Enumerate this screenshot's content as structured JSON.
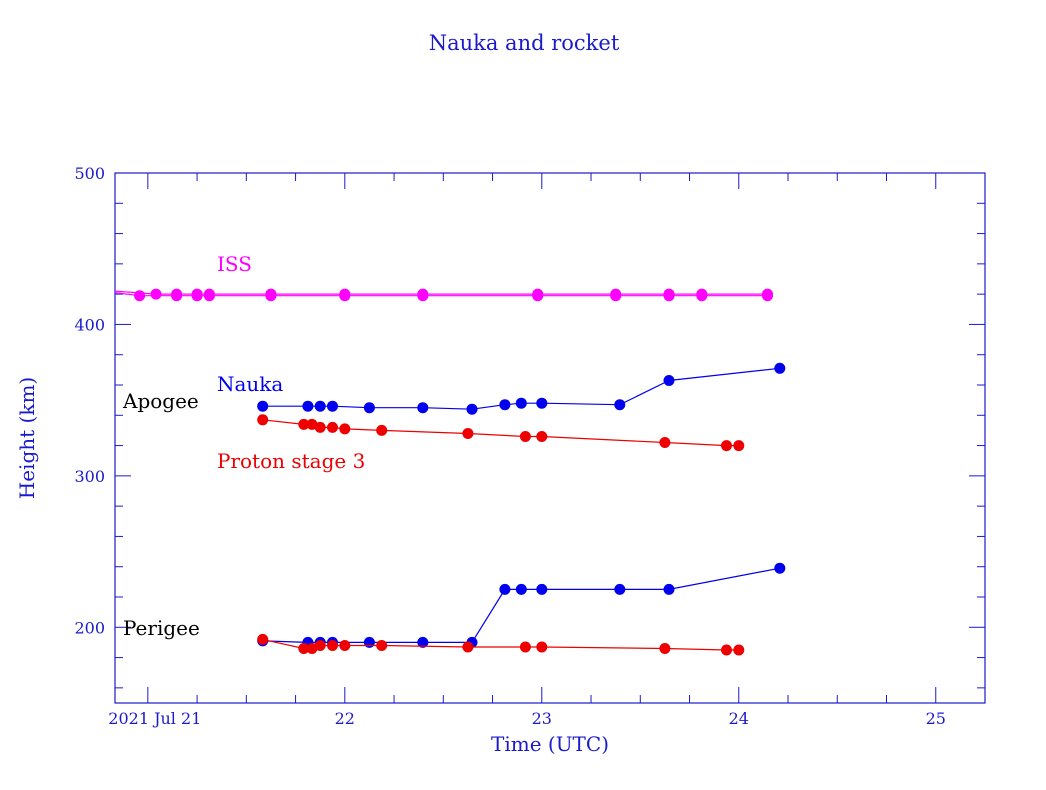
{
  "chart_data": {
    "type": "line",
    "title": "Nauka and rocket",
    "xlabel": "Time (UTC)",
    "ylabel": "Height (km)",
    "xlim": [
      "2021-07-20T20:00",
      "2021-07-25T06:00"
    ],
    "ylim": [
      150,
      500
    ],
    "x_ticks": [
      {
        "value": "2021-07-21",
        "label": "2021 Jul 21"
      },
      {
        "value": "2021-07-22",
        "label": "22"
      },
      {
        "value": "2021-07-23",
        "label": "23"
      },
      {
        "value": "2021-07-24",
        "label": "24"
      },
      {
        "value": "2021-07-25",
        "label": "25"
      }
    ],
    "y_ticks": [
      200,
      300,
      400,
      500
    ],
    "annotations": {
      "apogee": "Apogee",
      "perigee": "Perigee"
    },
    "series": [
      {
        "name": "ISS",
        "color": "#ff00ff",
        "lines": [
          {
            "points": [
              [
                "2021-07-20T20:00",
                422
              ],
              [
                "2021-07-21T01:00",
                420
              ],
              [
                "2021-07-21T03:30",
                420
              ],
              [
                "2021-07-21T06:00",
                420
              ],
              [
                "2021-07-21T07:30",
                420
              ],
              [
                "2021-07-21T15:00",
                420
              ],
              [
                "2021-07-22T00:00",
                420
              ],
              [
                "2021-07-22T09:30",
                420
              ],
              [
                "2021-07-22T23:30",
                420
              ],
              [
                "2021-07-23T09:00",
                420
              ],
              [
                "2021-07-23T15:30",
                420
              ],
              [
                "2021-07-23T19:30",
                420
              ],
              [
                "2021-07-24T03:30",
                420
              ]
            ]
          },
          {
            "points": [
              [
                "2021-07-20T20:00",
                421
              ],
              [
                "2021-07-20T23:00",
                419
              ],
              [
                "2021-07-21T03:30",
                419
              ],
              [
                "2021-07-21T06:00",
                419
              ],
              [
                "2021-07-21T07:30",
                419
              ],
              [
                "2021-07-21T15:00",
                419
              ],
              [
                "2021-07-22T00:00",
                419
              ],
              [
                "2021-07-22T09:30",
                419
              ],
              [
                "2021-07-22T23:30",
                419
              ],
              [
                "2021-07-23T09:00",
                419
              ],
              [
                "2021-07-23T15:30",
                419
              ],
              [
                "2021-07-23T19:30",
                419
              ],
              [
                "2021-07-24T03:30",
                419
              ]
            ]
          }
        ]
      },
      {
        "name": "Nauka",
        "color": "#0000ee",
        "lines": [
          {
            "role": "apogee",
            "points": [
              [
                "2021-07-21T14:00",
                346
              ],
              [
                "2021-07-21T19:30",
                346
              ],
              [
                "2021-07-21T21:00",
                346
              ],
              [
                "2021-07-21T22:30",
                346
              ],
              [
                "2021-07-22T03:00",
                345
              ],
              [
                "2021-07-22T09:30",
                345
              ],
              [
                "2021-07-22T15:30",
                344
              ],
              [
                "2021-07-22T19:30",
                347
              ],
              [
                "2021-07-22T21:30",
                348
              ],
              [
                "2021-07-23T00:00",
                348
              ],
              [
                "2021-07-23T09:30",
                347
              ],
              [
                "2021-07-23T15:30",
                363
              ],
              [
                "2021-07-24T05:00",
                371
              ]
            ]
          },
          {
            "role": "perigee",
            "points": [
              [
                "2021-07-21T14:00",
                191
              ],
              [
                "2021-07-21T19:30",
                190
              ],
              [
                "2021-07-21T21:00",
                190
              ],
              [
                "2021-07-21T22:30",
                190
              ],
              [
                "2021-07-22T03:00",
                190
              ],
              [
                "2021-07-22T09:30",
                190
              ],
              [
                "2021-07-22T15:30",
                190
              ],
              [
                "2021-07-22T19:30",
                225
              ],
              [
                "2021-07-22T21:30",
                225
              ],
              [
                "2021-07-23T00:00",
                225
              ],
              [
                "2021-07-23T09:30",
                225
              ],
              [
                "2021-07-23T15:30",
                225
              ],
              [
                "2021-07-24T05:00",
                239
              ]
            ]
          }
        ]
      },
      {
        "name": "Proton stage 3",
        "color": "#ee0000",
        "lines": [
          {
            "role": "apogee",
            "points": [
              [
                "2021-07-21T14:00",
                337
              ],
              [
                "2021-07-21T19:00",
                334
              ],
              [
                "2021-07-21T20:00",
                334
              ],
              [
                "2021-07-21T21:00",
                332
              ],
              [
                "2021-07-21T22:30",
                332
              ],
              [
                "2021-07-22T00:00",
                331
              ],
              [
                "2021-07-22T04:30",
                330
              ],
              [
                "2021-07-22T15:00",
                328
              ],
              [
                "2021-07-22T22:00",
                326
              ],
              [
                "2021-07-23T00:00",
                326
              ],
              [
                "2021-07-23T15:00",
                322
              ],
              [
                "2021-07-23T22:30",
                320
              ],
              [
                "2021-07-24T00:00",
                320
              ]
            ]
          },
          {
            "role": "perigee",
            "points": [
              [
                "2021-07-21T14:00",
                192
              ],
              [
                "2021-07-21T19:00",
                186
              ],
              [
                "2021-07-21T20:00",
                186
              ],
              [
                "2021-07-21T21:00",
                188
              ],
              [
                "2021-07-21T22:30",
                188
              ],
              [
                "2021-07-22T00:00",
                188
              ],
              [
                "2021-07-22T04:30",
                188
              ],
              [
                "2021-07-22T15:00",
                187
              ],
              [
                "2021-07-22T22:00",
                187
              ],
              [
                "2021-07-23T00:00",
                187
              ],
              [
                "2021-07-23T15:00",
                186
              ],
              [
                "2021-07-23T22:30",
                185
              ],
              [
                "2021-07-24T00:00",
                185
              ]
            ]
          }
        ]
      }
    ]
  }
}
